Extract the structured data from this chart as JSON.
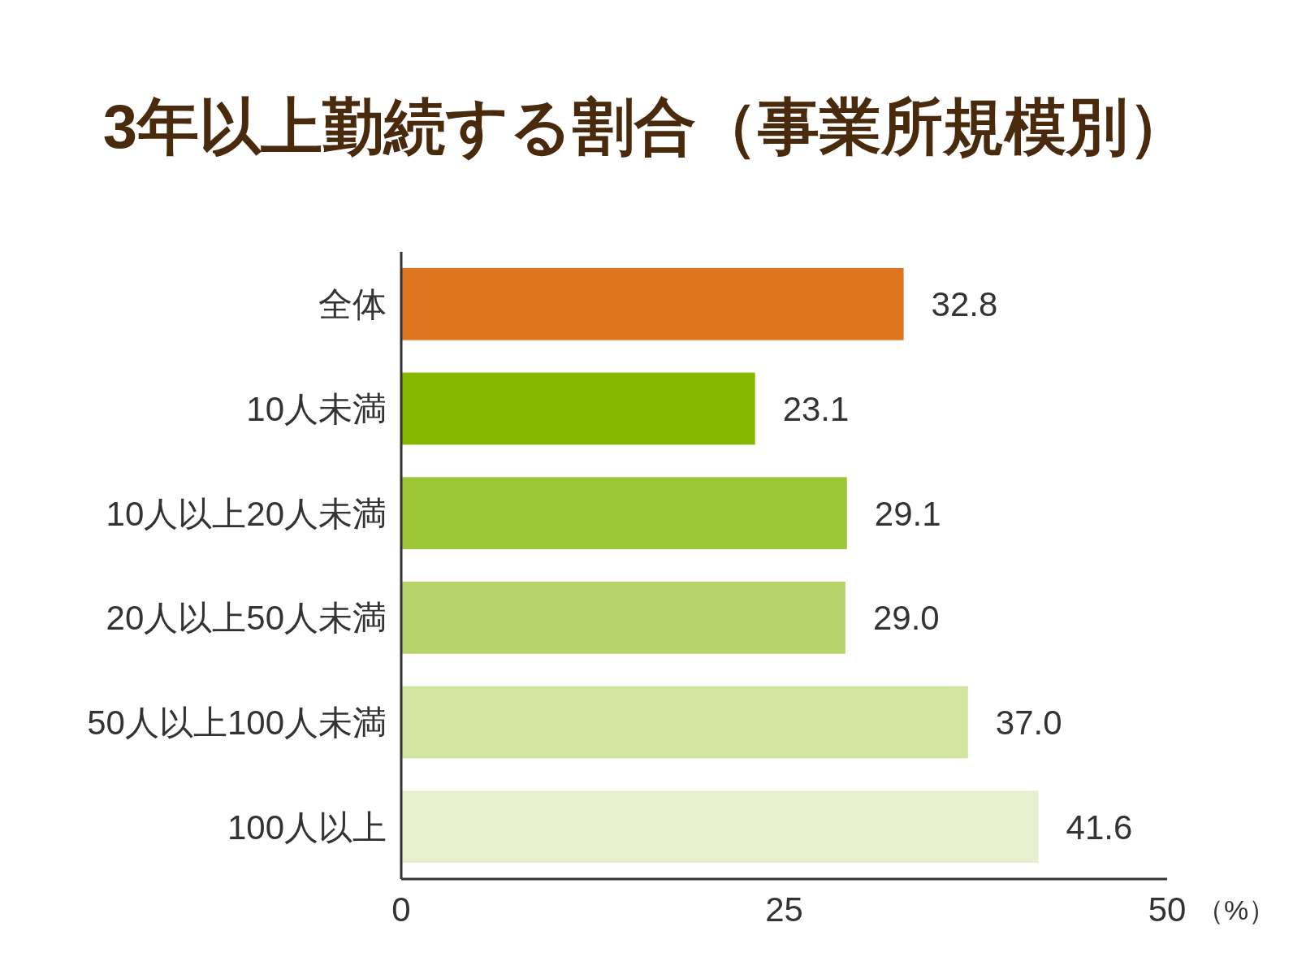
{
  "chart_data": {
    "type": "bar",
    "orientation": "horizontal",
    "title": "3年以上勤続する割合（事業所規模別）",
    "xlabel": "（%）",
    "categories": [
      "全体",
      "10人未満",
      "10人以上20人未満",
      "20人以上50人未満",
      "50人以上100人未満",
      "100人以上"
    ],
    "values": [
      32.8,
      23.1,
      29.1,
      29.0,
      37.0,
      41.6
    ],
    "value_labels": [
      "32.8",
      "23.1",
      "29.1",
      "29.0",
      "37.0",
      "41.6"
    ],
    "colors": [
      "#df751e",
      "#86b800",
      "#9dc738",
      "#b5d56a",
      "#d0e59d",
      "#e6f0cc"
    ],
    "xlim": [
      0,
      50
    ],
    "xticks": [
      0,
      25,
      50
    ],
    "grid": false
  }
}
